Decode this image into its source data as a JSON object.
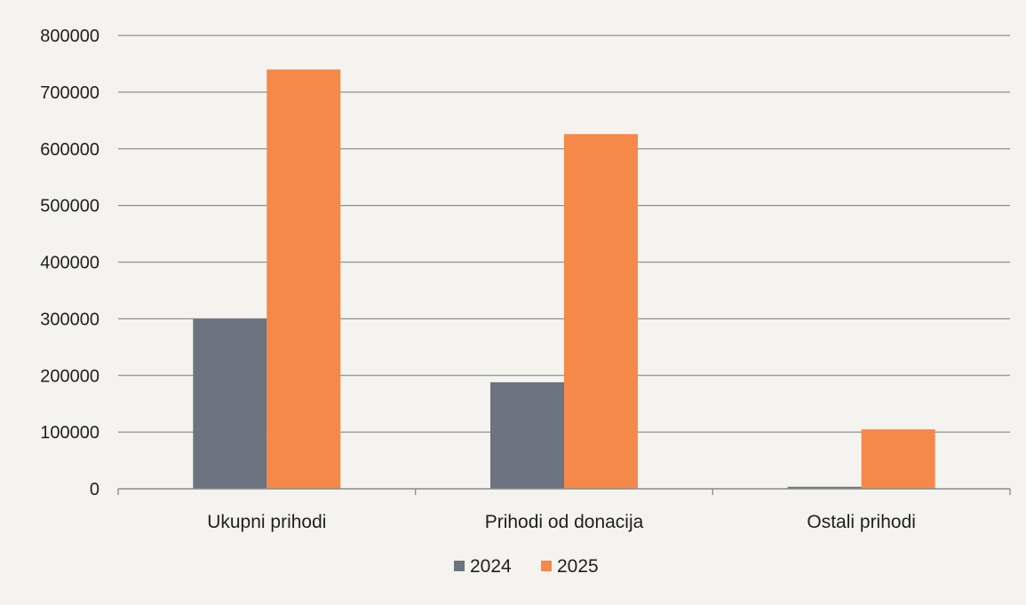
{
  "chart_data": {
    "type": "bar",
    "categories": [
      "Ukupni prihodi",
      "Prihodi od donacija",
      "Ostali prihodi"
    ],
    "series": [
      {
        "name": "2024",
        "color": "#6b7380",
        "values": [
          300000,
          188000,
          3500
        ]
      },
      {
        "name": "2025",
        "color": "#f5894a",
        "values": [
          740000,
          626000,
          105000
        ]
      }
    ],
    "title": "",
    "xlabel": "",
    "ylabel": "",
    "ylim": [
      0,
      800000
    ],
    "yticks": [
      0,
      100000,
      200000,
      300000,
      400000,
      500000,
      600000,
      700000,
      800000
    ],
    "ytick_labels": [
      "0",
      "100000",
      "200000",
      "300000",
      "400000",
      "500000",
      "600000",
      "700000",
      "800000"
    ],
    "grid": true,
    "legend_position": "bottom"
  }
}
